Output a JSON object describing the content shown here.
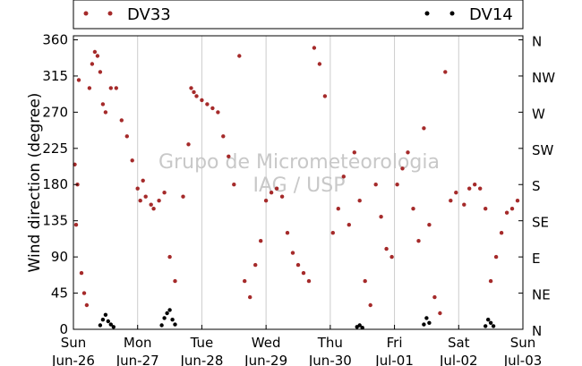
{
  "chart_data": {
    "type": "scatter",
    "ylabel": "Wind direction (degree)",
    "ylim": [
      0,
      365
    ],
    "xlim": [
      "2016-06-26T00:00",
      "2016-07-03T00:00"
    ],
    "grid": "vertical",
    "legend_position": "top",
    "watermark": [
      "Grupo de Micrometeorologia",
      "IAG / USP"
    ],
    "y_ticks_left": [
      "0",
      "45",
      "90",
      "135",
      "180",
      "225",
      "270",
      "315",
      "360"
    ],
    "y_ticks_right": [
      "N",
      "NE",
      "E",
      "SE",
      "S",
      "SW",
      "W",
      "NW",
      "N"
    ],
    "x_ticks": [
      {
        "day": "Sun",
        "date": "Jun-26"
      },
      {
        "day": "Mon",
        "date": "Jun-27"
      },
      {
        "day": "Tue",
        "date": "Jun-28"
      },
      {
        "day": "Wed",
        "date": "Jun-29"
      },
      {
        "day": "Thu",
        "date": "Jun-30"
      },
      {
        "day": "Fri",
        "date": "Jul-01"
      },
      {
        "day": "Sat",
        "date": "Jul-02"
      },
      {
        "day": "Sun",
        "date": "Jul-03"
      }
    ],
    "series": [
      {
        "name": "DV33",
        "color": "#a52a2a",
        "points": [
          {
            "t": "2016-06-26T00:30",
            "y": 205
          },
          {
            "t": "2016-06-26T01:00",
            "y": 130
          },
          {
            "t": "2016-06-26T01:30",
            "y": 180
          },
          {
            "t": "2016-06-26T02:00",
            "y": 310
          },
          {
            "t": "2016-06-26T03:00",
            "y": 70
          },
          {
            "t": "2016-06-26T04:00",
            "y": 45
          },
          {
            "t": "2016-06-26T05:00",
            "y": 30
          },
          {
            "t": "2016-06-26T06:00",
            "y": 300
          },
          {
            "t": "2016-06-26T07:00",
            "y": 330
          },
          {
            "t": "2016-06-26T08:00",
            "y": 345
          },
          {
            "t": "2016-06-26T09:00",
            "y": 340
          },
          {
            "t": "2016-06-26T10:00",
            "y": 320
          },
          {
            "t": "2016-06-26T11:00",
            "y": 280
          },
          {
            "t": "2016-06-26T12:00",
            "y": 270
          },
          {
            "t": "2016-06-26T14:00",
            "y": 300
          },
          {
            "t": "2016-06-26T16:00",
            "y": 300
          },
          {
            "t": "2016-06-26T18:00",
            "y": 260
          },
          {
            "t": "2016-06-26T20:00",
            "y": 240
          },
          {
            "t": "2016-06-26T22:00",
            "y": 210
          },
          {
            "t": "2016-06-27T00:00",
            "y": 175
          },
          {
            "t": "2016-06-27T01:00",
            "y": 160
          },
          {
            "t": "2016-06-27T02:00",
            "y": 185
          },
          {
            "t": "2016-06-27T03:00",
            "y": 165
          },
          {
            "t": "2016-06-27T05:00",
            "y": 155
          },
          {
            "t": "2016-06-27T06:00",
            "y": 150
          },
          {
            "t": "2016-06-27T08:00",
            "y": 160
          },
          {
            "t": "2016-06-27T10:00",
            "y": 170
          },
          {
            "t": "2016-06-27T12:00",
            "y": 90
          },
          {
            "t": "2016-06-27T14:00",
            "y": 60
          },
          {
            "t": "2016-06-27T17:00",
            "y": 165
          },
          {
            "t": "2016-06-27T19:00",
            "y": 230
          },
          {
            "t": "2016-06-27T20:00",
            "y": 300
          },
          {
            "t": "2016-06-27T21:00",
            "y": 295
          },
          {
            "t": "2016-06-27T22:00",
            "y": 290
          },
          {
            "t": "2016-06-28T00:00",
            "y": 285
          },
          {
            "t": "2016-06-28T02:00",
            "y": 280
          },
          {
            "t": "2016-06-28T04:00",
            "y": 275
          },
          {
            "t": "2016-06-28T06:00",
            "y": 270
          },
          {
            "t": "2016-06-28T08:00",
            "y": 240
          },
          {
            "t": "2016-06-28T10:00",
            "y": 215
          },
          {
            "t": "2016-06-28T12:00",
            "y": 180
          },
          {
            "t": "2016-06-28T14:00",
            "y": 340
          },
          {
            "t": "2016-06-28T16:00",
            "y": 60
          },
          {
            "t": "2016-06-28T18:00",
            "y": 40
          },
          {
            "t": "2016-06-28T20:00",
            "y": 80
          },
          {
            "t": "2016-06-28T22:00",
            "y": 110
          },
          {
            "t": "2016-06-29T00:00",
            "y": 160
          },
          {
            "t": "2016-06-29T02:00",
            "y": 170
          },
          {
            "t": "2016-06-29T04:00",
            "y": 175
          },
          {
            "t": "2016-06-29T06:00",
            "y": 165
          },
          {
            "t": "2016-06-29T08:00",
            "y": 120
          },
          {
            "t": "2016-06-29T10:00",
            "y": 95
          },
          {
            "t": "2016-06-29T12:00",
            "y": 80
          },
          {
            "t": "2016-06-29T14:00",
            "y": 70
          },
          {
            "t": "2016-06-29T16:00",
            "y": 60
          },
          {
            "t": "2016-06-29T18:00",
            "y": 350
          },
          {
            "t": "2016-06-29T20:00",
            "y": 330
          },
          {
            "t": "2016-06-29T22:00",
            "y": 290
          },
          {
            "t": "2016-06-30T01:00",
            "y": 120
          },
          {
            "t": "2016-06-30T03:00",
            "y": 150
          },
          {
            "t": "2016-06-30T05:00",
            "y": 190
          },
          {
            "t": "2016-06-30T07:00",
            "y": 130
          },
          {
            "t": "2016-06-30T09:00",
            "y": 220
          },
          {
            "t": "2016-06-30T11:00",
            "y": 160
          },
          {
            "t": "2016-06-30T13:00",
            "y": 60
          },
          {
            "t": "2016-06-30T15:00",
            "y": 30
          },
          {
            "t": "2016-06-30T17:00",
            "y": 180
          },
          {
            "t": "2016-06-30T19:00",
            "y": 140
          },
          {
            "t": "2016-06-30T21:00",
            "y": 100
          },
          {
            "t": "2016-06-30T23:00",
            "y": 90
          },
          {
            "t": "2016-07-01T01:00",
            "y": 180
          },
          {
            "t": "2016-07-01T03:00",
            "y": 200
          },
          {
            "t": "2016-07-01T05:00",
            "y": 220
          },
          {
            "t": "2016-07-01T07:00",
            "y": 150
          },
          {
            "t": "2016-07-01T09:00",
            "y": 110
          },
          {
            "t": "2016-07-01T11:00",
            "y": 250
          },
          {
            "t": "2016-07-01T13:00",
            "y": 130
          },
          {
            "t": "2016-07-01T15:00",
            "y": 40
          },
          {
            "t": "2016-07-01T17:00",
            "y": 20
          },
          {
            "t": "2016-07-01T19:00",
            "y": 320
          },
          {
            "t": "2016-07-01T21:00",
            "y": 160
          },
          {
            "t": "2016-07-01T23:00",
            "y": 170
          },
          {
            "t": "2016-07-02T02:00",
            "y": 155
          },
          {
            "t": "2016-07-02T04:00",
            "y": 175
          },
          {
            "t": "2016-07-02T06:00",
            "y": 180
          },
          {
            "t": "2016-07-02T08:00",
            "y": 175
          },
          {
            "t": "2016-07-02T10:00",
            "y": 150
          },
          {
            "t": "2016-07-02T12:00",
            "y": 60
          },
          {
            "t": "2016-07-02T14:00",
            "y": 90
          },
          {
            "t": "2016-07-02T16:00",
            "y": 120
          },
          {
            "t": "2016-07-02T18:00",
            "y": 145
          },
          {
            "t": "2016-07-02T20:00",
            "y": 150
          },
          {
            "t": "2016-07-02T22:00",
            "y": 160
          }
        ]
      },
      {
        "name": "DV14",
        "color": "#000000",
        "points": [
          {
            "t": "2016-06-26T10:00",
            "y": 5
          },
          {
            "t": "2016-06-26T11:00",
            "y": 12
          },
          {
            "t": "2016-06-26T12:00",
            "y": 18
          },
          {
            "t": "2016-06-26T13:00",
            "y": 10
          },
          {
            "t": "2016-06-26T14:00",
            "y": 6
          },
          {
            "t": "2016-06-26T15:00",
            "y": 3
          },
          {
            "t": "2016-06-27T09:00",
            "y": 5
          },
          {
            "t": "2016-06-27T10:00",
            "y": 14
          },
          {
            "t": "2016-06-27T11:00",
            "y": 20
          },
          {
            "t": "2016-06-27T12:00",
            "y": 24
          },
          {
            "t": "2016-06-27T13:00",
            "y": 12
          },
          {
            "t": "2016-06-27T14:00",
            "y": 6
          },
          {
            "t": "2016-06-30T10:00",
            "y": 3
          },
          {
            "t": "2016-06-30T11:00",
            "y": 5
          },
          {
            "t": "2016-06-30T12:00",
            "y": 2
          },
          {
            "t": "2016-07-01T11:00",
            "y": 6
          },
          {
            "t": "2016-07-01T12:00",
            "y": 14
          },
          {
            "t": "2016-07-01T13:00",
            "y": 8
          },
          {
            "t": "2016-07-02T10:00",
            "y": 4
          },
          {
            "t": "2016-07-02T11:00",
            "y": 12
          },
          {
            "t": "2016-07-02T12:00",
            "y": 8
          },
          {
            "t": "2016-07-02T13:00",
            "y": 4
          }
        ]
      }
    ]
  }
}
